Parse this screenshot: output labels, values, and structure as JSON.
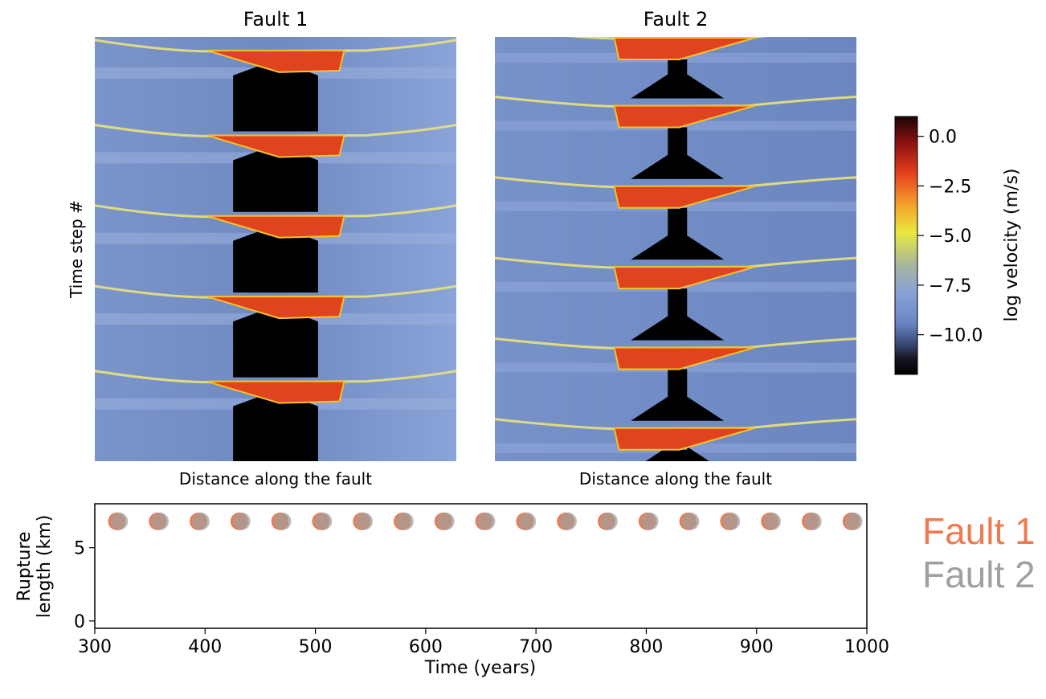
{
  "chart_data": [
    {
      "type": "heatmap",
      "title": "Fault 1",
      "xlabel": "Distance along the fault",
      "ylabel": "Time step #",
      "events": [
        {
          "tip_frac": 0.03
        },
        {
          "tip_frac": 0.23
        },
        {
          "tip_frac": 0.42
        },
        {
          "tip_frac": 0.61
        },
        {
          "tip_frac": 0.81
        }
      ]
    },
    {
      "type": "heatmap",
      "title": "Fault 2",
      "xlabel": "Distance along the fault",
      "ylabel": "",
      "events": [
        {
          "tip_frac": 0.0
        },
        {
          "tip_frac": 0.16
        },
        {
          "tip_frac": 0.35
        },
        {
          "tip_frac": 0.54
        },
        {
          "tip_frac": 0.73
        },
        {
          "tip_frac": 0.92
        }
      ]
    },
    {
      "type": "colorbar",
      "label": "log velocity (m/s)",
      "ticks": [
        "0.0",
        "−2.5",
        "−5.0",
        "−7.5",
        "−10.0"
      ],
      "tick_values": [
        0.0,
        -2.5,
        -5.0,
        -7.5,
        -10.0
      ],
      "range": [
        -12,
        1
      ]
    },
    {
      "type": "scatter",
      "xlabel": "Time (years)",
      "ylabel_lines": [
        "Rupture",
        "length (km)"
      ],
      "xlim": [
        300,
        1000
      ],
      "ylim": [
        -0.5,
        8
      ],
      "xticks": [
        "300",
        "400",
        "500",
        "600",
        "700",
        "800",
        "900",
        "1000"
      ],
      "yticks": [
        "0",
        "5"
      ],
      "series": [
        {
          "name": "Fault 1",
          "color": "#F07A50",
          "x": [
            320,
            357,
            394,
            431,
            468,
            505,
            542,
            579,
            616,
            653,
            690,
            727,
            764,
            801,
            838,
            875,
            912,
            949,
            986
          ],
          "y": [
            6.8,
            6.8,
            6.8,
            6.8,
            6.8,
            6.8,
            6.8,
            6.8,
            6.8,
            6.8,
            6.8,
            6.8,
            6.8,
            6.8,
            6.8,
            6.8,
            6.8,
            6.8,
            6.8
          ]
        },
        {
          "name": "Fault 2",
          "color": "#A0A0A0",
          "x": [
            322,
            359,
            396,
            433,
            470,
            507,
            544,
            581,
            618,
            655,
            692,
            729,
            766,
            803,
            840,
            877,
            914,
            951,
            988
          ],
          "y": [
            6.8,
            6.8,
            6.8,
            6.8,
            6.8,
            6.8,
            6.8,
            6.8,
            6.8,
            6.8,
            6.8,
            6.8,
            6.8,
            6.8,
            6.8,
            6.8,
            6.8,
            6.8,
            6.8
          ]
        }
      ]
    }
  ]
}
